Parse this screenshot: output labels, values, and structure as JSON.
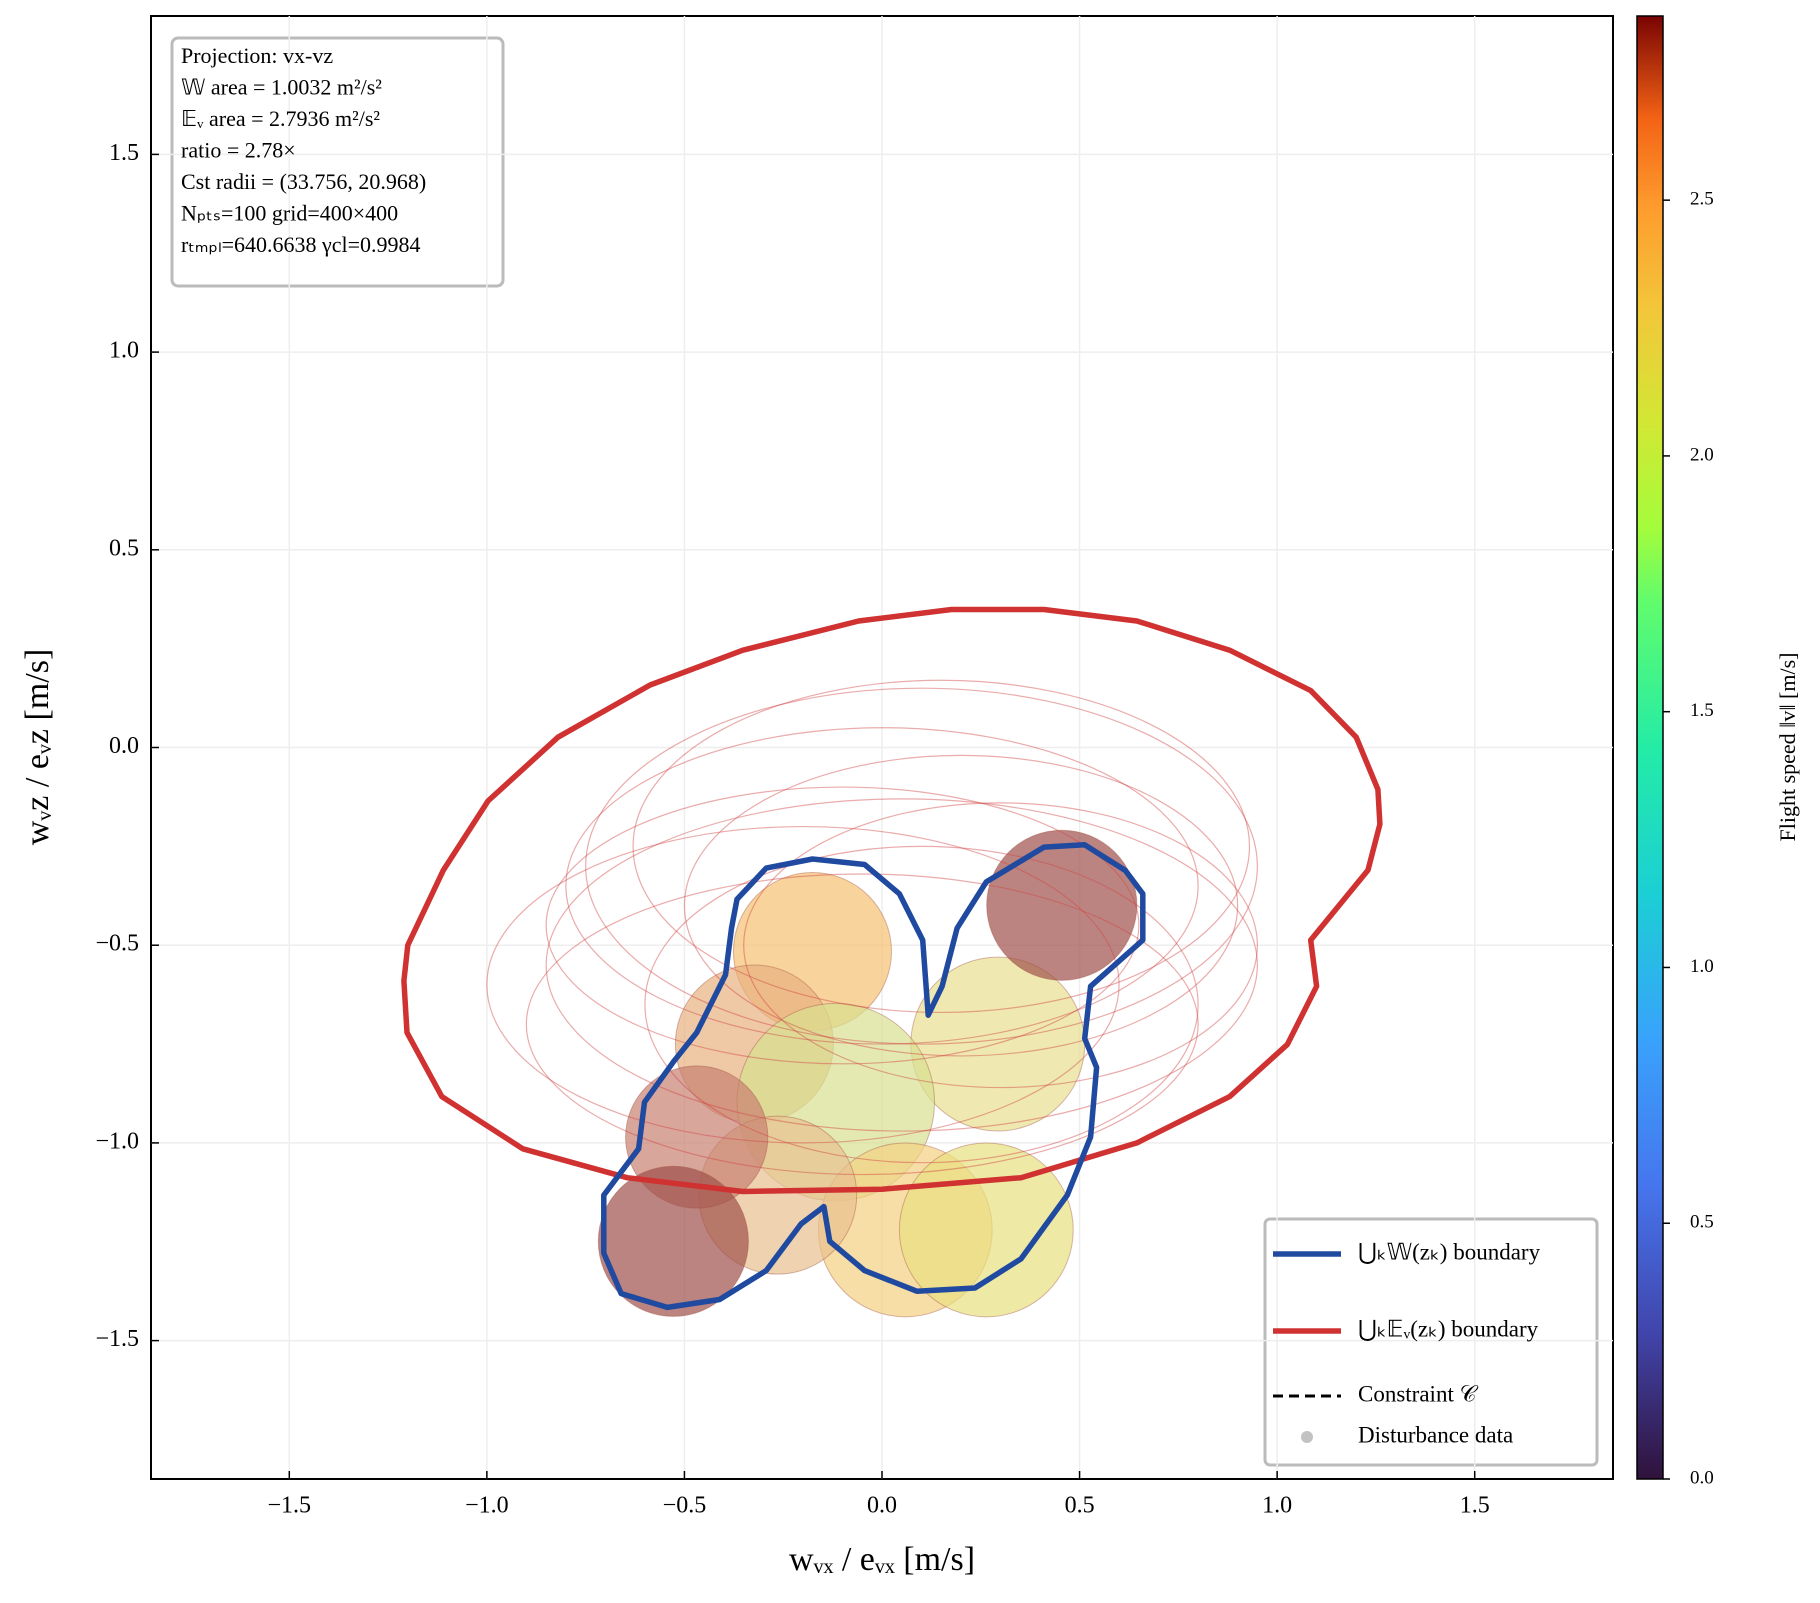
{
  "chart_data": {
    "type": "region",
    "xlabel": "wᵥₓ / eᵥₓ  [m/s]",
    "ylabel": "wᵥz / eᵥz  [m/s]",
    "xlim": [
      -1.85,
      1.85
    ],
    "ylim": [
      -1.85,
      1.85
    ],
    "xticks": [
      {
        "value": -1.5,
        "label": "−1.5"
      },
      {
        "value": -1,
        "label": "−1.0"
      },
      {
        "value": -0.5,
        "label": "−0.5"
      },
      {
        "value": 0,
        "label": "0.0"
      },
      {
        "value": 0.5,
        "label": "0.5"
      },
      {
        "value": 1,
        "label": "1.0"
      },
      {
        "value": 1.5,
        "label": "1.5"
      }
    ],
    "yticks": [
      {
        "value": -1.5,
        "label": "−1.5"
      },
      {
        "value": -1,
        "label": "−1.0"
      },
      {
        "value": -0.5,
        "label": "−0.5"
      },
      {
        "value": 0,
        "label": "0.0"
      },
      {
        "value": 0.5,
        "label": "0.5"
      },
      {
        "value": 1,
        "label": "1.0"
      },
      {
        "value": 1.5,
        "label": "1.5"
      }
    ],
    "grid": true,
    "info": [
      "Projection: vx-vz",
      "𝕎 area = 1.0032 m²/s²",
      "𝔼ᵥ area = 2.7936 m²/s²",
      "ratio = 2.78×",
      "Cst radii = (33.756, 20.968)",
      "Nₚₜₛ=100   grid=400×400",
      "rₜₘₚₗ=640.6638   γcl=0.9984"
    ],
    "series": [
      {
        "name": "⋃ₖ𝕎(zₖ) boundary",
        "color": "#1f4aa0",
        "x": [
          -0.381,
          -0.367,
          -0.293,
          -0.176,
          -0.044,
          0.044,
          0.103,
          0.117,
          0.152,
          0.19,
          0.264,
          0.41,
          0.513,
          0.616,
          0.66,
          0.66,
          0.528,
          0.513,
          0.543,
          0.528,
          0.469,
          0.352,
          0.235,
          0.088,
          -0.044,
          -0.132,
          -0.147,
          -0.205,
          -0.293,
          -0.411,
          -0.543,
          -0.66,
          -0.704,
          -0.704,
          -0.616,
          -0.601,
          -0.528,
          -0.469,
          -0.396
        ],
        "y": [
          -0.457,
          -0.384,
          -0.305,
          -0.282,
          -0.296,
          -0.37,
          -0.487,
          -0.677,
          -0.604,
          -0.457,
          -0.34,
          -0.252,
          -0.246,
          -0.311,
          -0.37,
          -0.487,
          -0.604,
          -0.736,
          -0.809,
          -0.985,
          -1.132,
          -1.293,
          -1.367,
          -1.375,
          -1.323,
          -1.249,
          -1.161,
          -1.205,
          -1.323,
          -1.396,
          -1.416,
          -1.381,
          -1.279,
          -1.132,
          -1.015,
          -0.897,
          -0.795,
          -0.721,
          -0.575
        ]
      },
      {
        "name": "⋃ₖ𝔼ᵥ(zₖ) boundary",
        "color": "#d03232",
        "x": [
          -1.21,
          -1.2,
          -1.11,
          -0.997,
          -0.82,
          -0.587,
          -0.352,
          -0.059,
          0.176,
          0.41,
          0.645,
          0.88,
          1.085,
          1.2,
          1.255,
          1.26,
          1.23,
          1.085,
          1.1,
          1.026,
          0.88,
          0.645,
          0.352,
          0,
          -0.352,
          -0.645,
          -0.909,
          -1.114,
          -1.202
        ],
        "y": [
          -0.59,
          -0.5,
          -0.31,
          -0.135,
          0.026,
          0.158,
          0.246,
          0.32,
          0.349,
          0.349,
          0.32,
          0.246,
          0.144,
          0.026,
          -0.106,
          -0.194,
          -0.31,
          -0.487,
          -0.604,
          -0.751,
          -0.883,
          -1.0,
          -1.088,
          -1.117,
          -1.123,
          -1.088,
          -1.015,
          -0.883,
          -0.721
        ]
      }
    ],
    "legend_extra": [
      "Constraint 𝒞",
      "Disturbance data"
    ],
    "ellipses": {
      "color": "#d04545",
      "cx": [
        0,
        0.1,
        -0.1,
        0.2,
        0.05,
        -0.2,
        0.15,
        0.3,
        -0.05,
        0.1
      ],
      "cy": [
        -0.35,
        -0.3,
        -0.45,
        -0.4,
        -0.55,
        -0.6,
        -0.25,
        -0.5,
        -0.7,
        -0.65
      ],
      "rx": [
        0.8,
        0.85,
        0.75,
        0.7,
        0.9,
        0.8,
        0.78,
        0.65,
        0.85,
        0.7
      ],
      "ry": [
        0.4,
        0.45,
        0.35,
        0.38,
        0.42,
        0.4,
        0.42,
        0.36,
        0.38,
        0.4
      ]
    },
    "discs": {
      "x": [
        -0.176,
        0.293,
        -0.323,
        -0.117,
        0.059,
        0.264,
        -0.264,
        -0.469,
        0.455,
        -0.528
      ],
      "y": [
        -0.516,
        -0.75,
        -0.75,
        -0.897,
        -1.22,
        -1.22,
        -1.132,
        -0.985,
        -0.399,
        -1.249
      ],
      "r": [
        0.2,
        0.22,
        0.2,
        0.25,
        0.22,
        0.22,
        0.2,
        0.18,
        0.19,
        0.19
      ],
      "colors": [
        "#f5c070",
        "#e8e090",
        "#e8b080",
        "#d8e090",
        "#f3d080",
        "#e8e080",
        "#e8c090",
        "#c88070",
        "#a0504a",
        "#a0504a"
      ]
    },
    "colorbar": {
      "label": "Flight speed ‖v‖ [m/s]",
      "lim": [
        0,
        2.86
      ],
      "ticks": [
        {
          "value": 0,
          "label": "0.0"
        },
        {
          "value": 0.5,
          "label": "0.5"
        },
        {
          "value": 1,
          "label": "1.0"
        },
        {
          "value": 1.5,
          "label": "1.5"
        },
        {
          "value": 2,
          "label": "2.0"
        },
        {
          "value": 2.5,
          "label": "2.5"
        }
      ]
    }
  }
}
